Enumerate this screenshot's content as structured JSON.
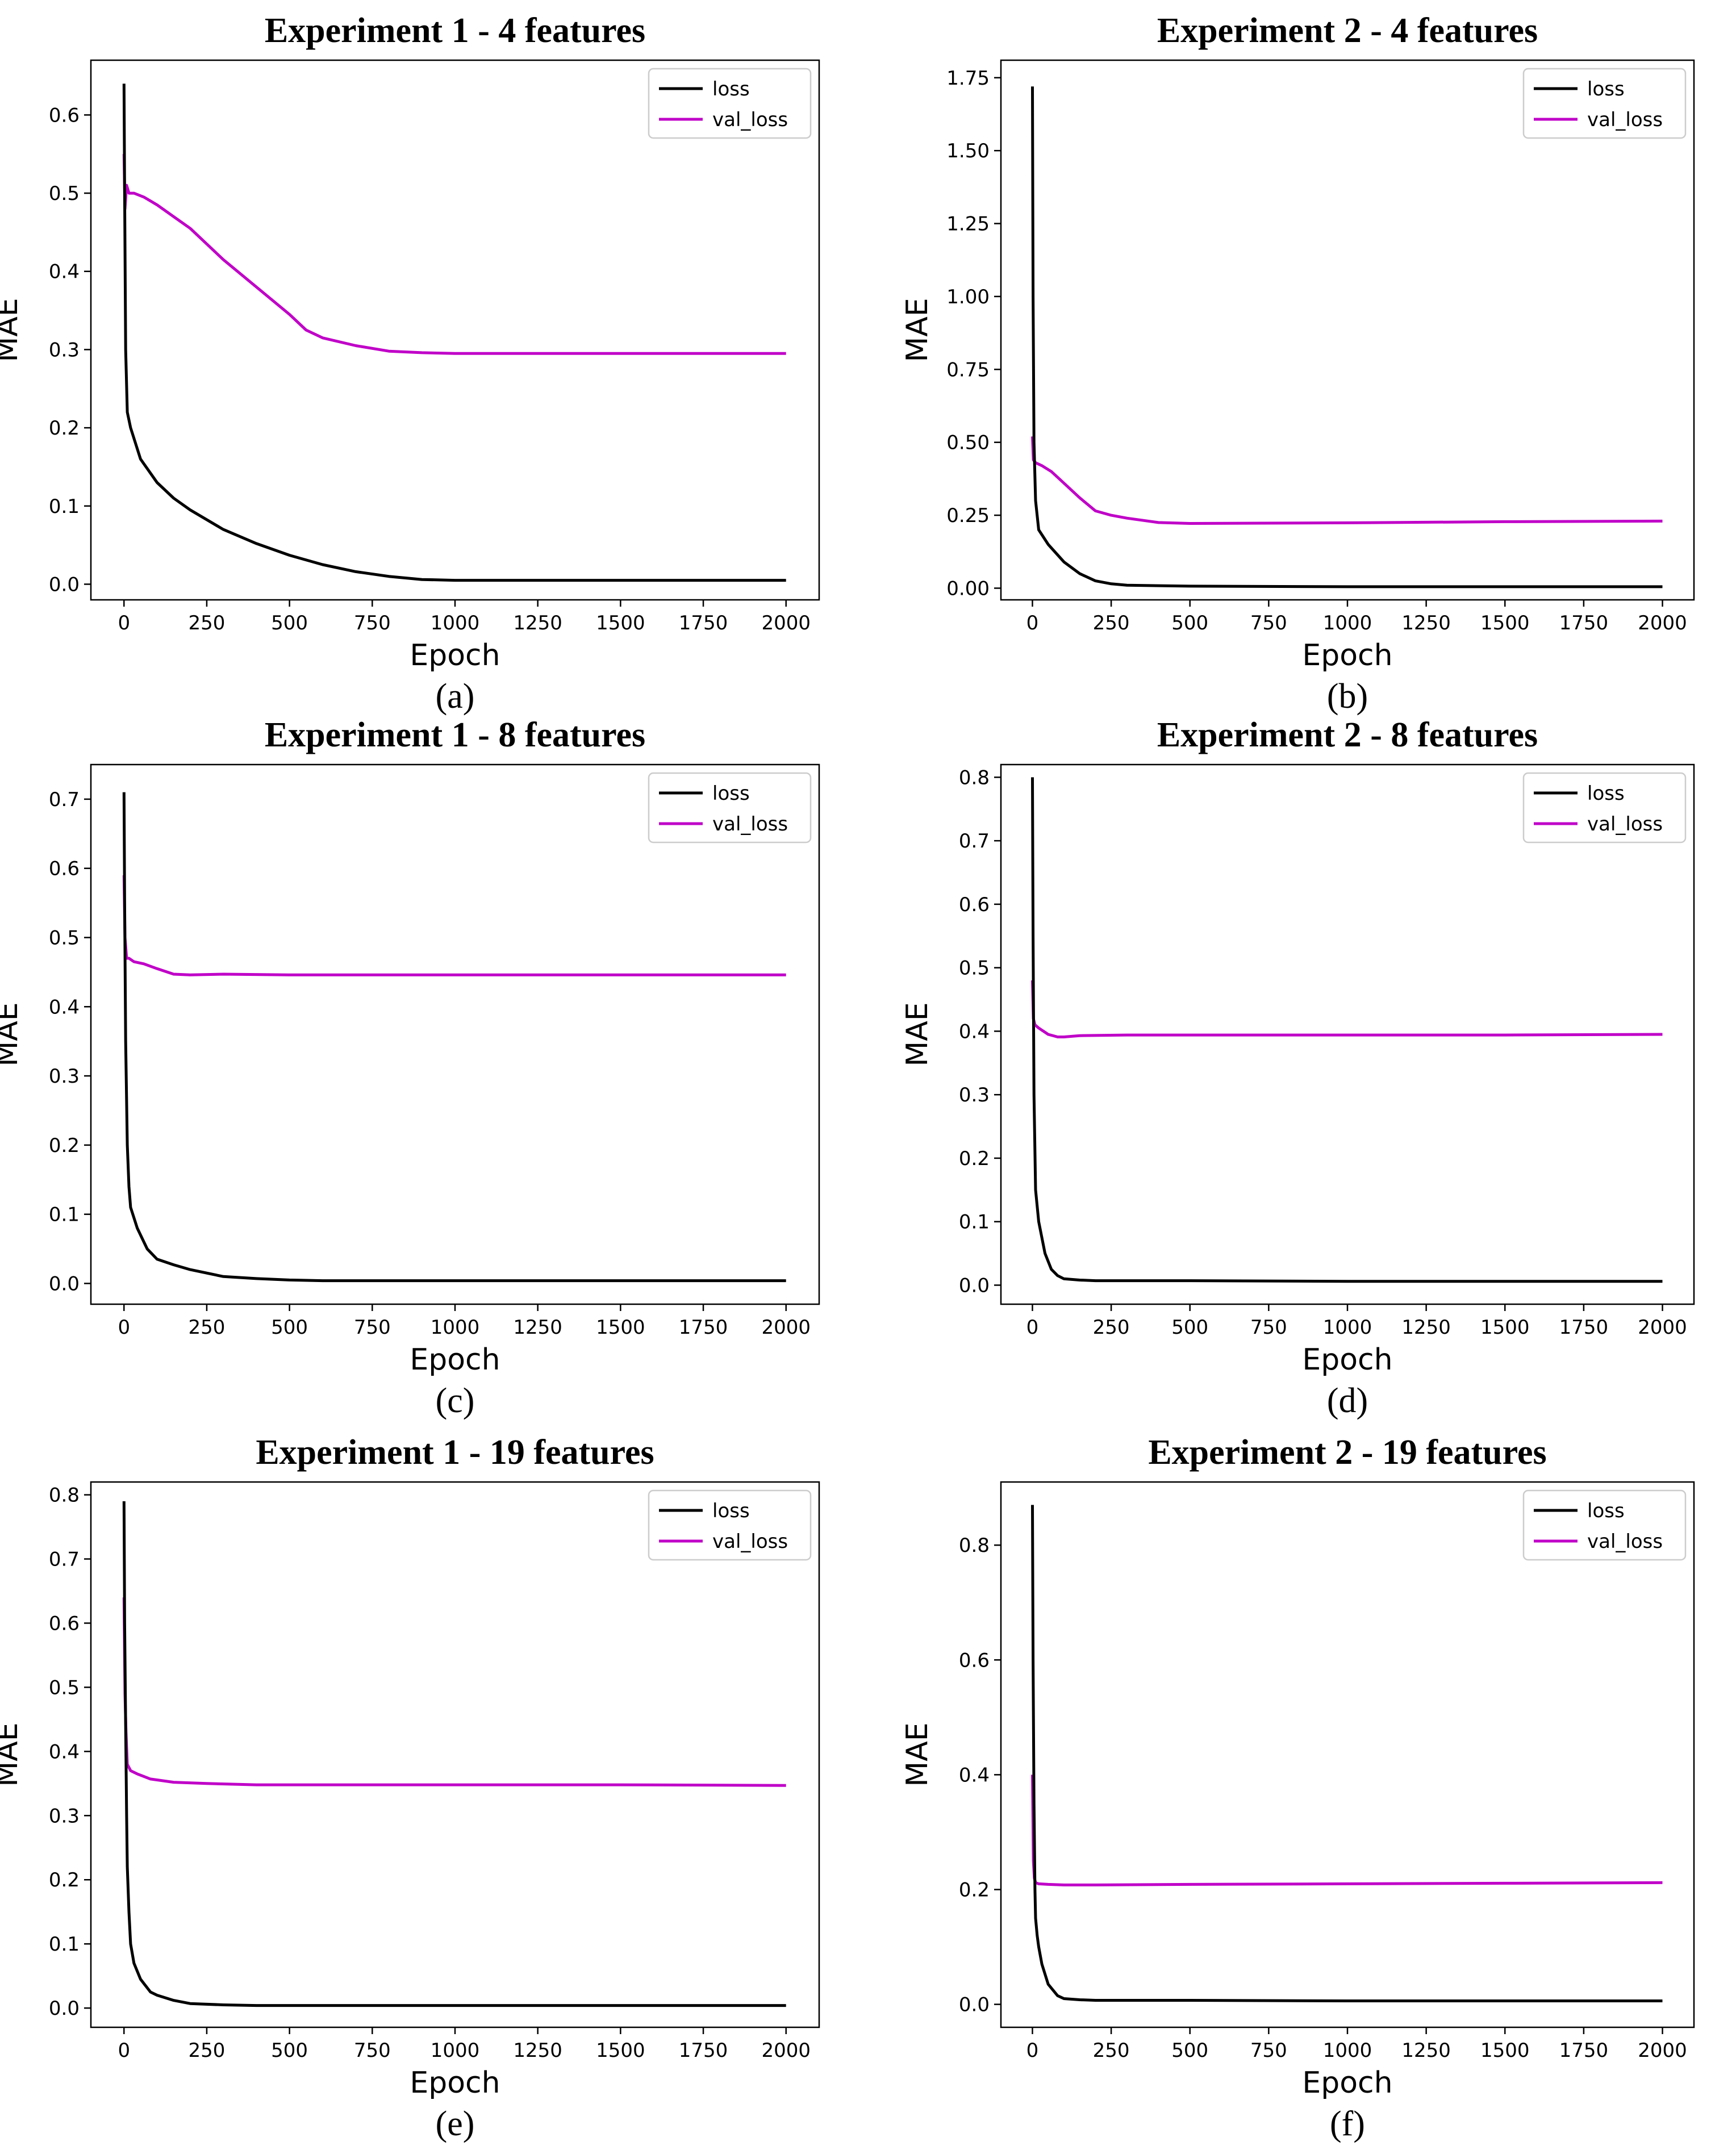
{
  "colors": {
    "loss": "#000000",
    "val_loss": "#c000c8",
    "axes": "#000000",
    "legend_border": "#cccccc"
  },
  "chart_data": [
    {
      "type": "line",
      "title": "Experiment 1 - 4 features",
      "caption": "(a)",
      "xlabel": "Epoch",
      "ylabel": "MAE",
      "xlim": [
        -100,
        2100
      ],
      "ylim": [
        -0.02,
        0.67
      ],
      "xticks": [
        0,
        250,
        500,
        750,
        1000,
        1250,
        1500,
        1750,
        2000
      ],
      "xtick_labels": [
        "0",
        "250",
        "500",
        "750",
        "1000",
        "1250",
        "1500",
        "1750",
        "2000"
      ],
      "yticks": [
        0.0,
        0.1,
        0.2,
        0.3,
        0.4,
        0.5,
        0.6
      ],
      "ytick_labels": [
        "0.0",
        "0.1",
        "0.2",
        "0.3",
        "0.4",
        "0.5",
        "0.6"
      ],
      "legend": [
        "loss",
        "val_loss"
      ],
      "legend_position": "top-right",
      "series": [
        {
          "name": "loss",
          "x": [
            0,
            2,
            5,
            10,
            20,
            50,
            100,
            150,
            200,
            300,
            400,
            500,
            600,
            700,
            800,
            900,
            1000,
            1500,
            2000
          ],
          "y": [
            0.64,
            0.5,
            0.3,
            0.22,
            0.2,
            0.16,
            0.13,
            0.11,
            0.095,
            0.07,
            0.052,
            0.037,
            0.025,
            0.016,
            0.01,
            0.006,
            0.005,
            0.005,
            0.005
          ]
        },
        {
          "name": "val_loss",
          "x": [
            0,
            3,
            8,
            15,
            30,
            60,
            100,
            150,
            200,
            250,
            300,
            400,
            500,
            550,
            600,
            700,
            800,
            900,
            1000,
            1500,
            2000
          ],
          "y": [
            0.55,
            0.48,
            0.51,
            0.5,
            0.5,
            0.495,
            0.485,
            0.47,
            0.455,
            0.435,
            0.415,
            0.38,
            0.345,
            0.325,
            0.315,
            0.305,
            0.298,
            0.296,
            0.295,
            0.295,
            0.295
          ]
        }
      ]
    },
    {
      "type": "line",
      "title": "Experiment 2 - 4 features",
      "caption": "(b)",
      "xlabel": "Epoch",
      "ylabel": "MAE",
      "xlim": [
        -100,
        2100
      ],
      "ylim": [
        -0.04,
        1.81
      ],
      "xticks": [
        0,
        250,
        500,
        750,
        1000,
        1250,
        1500,
        1750,
        2000
      ],
      "xtick_labels": [
        "0",
        "250",
        "500",
        "750",
        "1000",
        "1250",
        "1500",
        "1750",
        "2000"
      ],
      "yticks": [
        0.0,
        0.25,
        0.5,
        0.75,
        1.0,
        1.25,
        1.5,
        1.75
      ],
      "ytick_labels": [
        "0.00",
        "0.25",
        "0.50",
        "0.75",
        "1.00",
        "1.25",
        "1.50",
        "1.75"
      ],
      "legend": [
        "loss",
        "val_loss"
      ],
      "legend_position": "top-right",
      "series": [
        {
          "name": "loss",
          "x": [
            0,
            2,
            5,
            10,
            20,
            50,
            100,
            150,
            200,
            250,
            300,
            500,
            1000,
            1500,
            2000
          ],
          "y": [
            1.72,
            1.0,
            0.5,
            0.3,
            0.2,
            0.15,
            0.09,
            0.05,
            0.025,
            0.015,
            0.01,
            0.007,
            0.005,
            0.005,
            0.005
          ]
        },
        {
          "name": "val_loss",
          "x": [
            0,
            3,
            10,
            30,
            60,
            100,
            150,
            200,
            250,
            300,
            400,
            500,
            1000,
            1500,
            2000
          ],
          "y": [
            0.52,
            0.44,
            0.43,
            0.42,
            0.4,
            0.36,
            0.31,
            0.265,
            0.25,
            0.24,
            0.225,
            0.222,
            0.224,
            0.228,
            0.23
          ]
        }
      ]
    },
    {
      "type": "line",
      "title": "Experiment 1 - 8 features",
      "caption": "(c)",
      "xlabel": "Epoch",
      "ylabel": "MAE",
      "xlim": [
        -100,
        2100
      ],
      "ylim": [
        -0.03,
        0.75
      ],
      "xticks": [
        0,
        250,
        500,
        750,
        1000,
        1250,
        1500,
        1750,
        2000
      ],
      "xtick_labels": [
        "0",
        "250",
        "500",
        "750",
        "1000",
        "1250",
        "1500",
        "1750",
        "2000"
      ],
      "yticks": [
        0.0,
        0.1,
        0.2,
        0.3,
        0.4,
        0.5,
        0.6,
        0.7
      ],
      "ytick_labels": [
        "0.0",
        "0.1",
        "0.2",
        "0.3",
        "0.4",
        "0.5",
        "0.6",
        "0.7"
      ],
      "legend": [
        "loss",
        "val_loss"
      ],
      "legend_position": "top-right",
      "series": [
        {
          "name": "loss",
          "x": [
            0,
            2,
            5,
            10,
            15,
            20,
            40,
            70,
            100,
            150,
            200,
            300,
            400,
            500,
            600,
            1000,
            1500,
            2000
          ],
          "y": [
            0.71,
            0.55,
            0.35,
            0.2,
            0.14,
            0.11,
            0.08,
            0.05,
            0.035,
            0.027,
            0.02,
            0.01,
            0.007,
            0.005,
            0.004,
            0.004,
            0.004,
            0.004
          ]
        },
        {
          "name": "val_loss",
          "x": [
            0,
            3,
            8,
            15,
            30,
            60,
            100,
            150,
            200,
            300,
            500,
            1000,
            1500,
            2000
          ],
          "y": [
            0.59,
            0.5,
            0.47,
            0.47,
            0.465,
            0.462,
            0.455,
            0.447,
            0.446,
            0.447,
            0.446,
            0.446,
            0.446,
            0.446
          ]
        }
      ]
    },
    {
      "type": "line",
      "title": "Experiment 2 - 8 features",
      "caption": "(d)",
      "xlabel": "Epoch",
      "ylabel": "MAE",
      "xlim": [
        -100,
        2100
      ],
      "ylim": [
        -0.03,
        0.82
      ],
      "xticks": [
        0,
        250,
        500,
        750,
        1000,
        1250,
        1500,
        1750,
        2000
      ],
      "xtick_labels": [
        "0",
        "250",
        "500",
        "750",
        "1000",
        "1250",
        "1500",
        "1750",
        "2000"
      ],
      "yticks": [
        0.0,
        0.1,
        0.2,
        0.3,
        0.4,
        0.5,
        0.6,
        0.7,
        0.8
      ],
      "ytick_labels": [
        "0.0",
        "0.1",
        "0.2",
        "0.3",
        "0.4",
        "0.5",
        "0.6",
        "0.7",
        "0.8"
      ],
      "legend": [
        "loss",
        "val_loss"
      ],
      "legend_position": "top-right",
      "series": [
        {
          "name": "loss",
          "x": [
            0,
            2,
            5,
            10,
            20,
            40,
            60,
            80,
            100,
            150,
            200,
            500,
            1000,
            1500,
            2000
          ],
          "y": [
            0.8,
            0.55,
            0.3,
            0.15,
            0.1,
            0.05,
            0.025,
            0.015,
            0.01,
            0.008,
            0.007,
            0.007,
            0.006,
            0.006,
            0.006
          ]
        },
        {
          "name": "val_loss",
          "x": [
            0,
            3,
            8,
            20,
            50,
            80,
            100,
            150,
            300,
            500,
            1000,
            1500,
            2000
          ],
          "y": [
            0.48,
            0.42,
            0.41,
            0.405,
            0.395,
            0.391,
            0.391,
            0.393,
            0.394,
            0.394,
            0.394,
            0.394,
            0.395
          ]
        }
      ]
    },
    {
      "type": "line",
      "title": "Experiment 1 - 19 features",
      "caption": "(e)",
      "xlabel": "Epoch",
      "ylabel": "MAE",
      "xlim": [
        -100,
        2100
      ],
      "ylim": [
        -0.03,
        0.82
      ],
      "xticks": [
        0,
        250,
        500,
        750,
        1000,
        1250,
        1500,
        1750,
        2000
      ],
      "xtick_labels": [
        "0",
        "250",
        "500",
        "750",
        "1000",
        "1250",
        "1500",
        "1750",
        "2000"
      ],
      "yticks": [
        0.0,
        0.1,
        0.2,
        0.3,
        0.4,
        0.5,
        0.6,
        0.7,
        0.8
      ],
      "ytick_labels": [
        "0.0",
        "0.1",
        "0.2",
        "0.3",
        "0.4",
        "0.5",
        "0.6",
        "0.7",
        "0.8"
      ],
      "legend": [
        "loss",
        "val_loss"
      ],
      "legend_position": "top-right",
      "series": [
        {
          "name": "loss",
          "x": [
            0,
            2,
            5,
            8,
            10,
            15,
            20,
            30,
            50,
            80,
            100,
            150,
            200,
            300,
            400,
            500,
            1000,
            1500,
            2000
          ],
          "y": [
            0.79,
            0.6,
            0.44,
            0.3,
            0.22,
            0.15,
            0.1,
            0.07,
            0.045,
            0.025,
            0.02,
            0.012,
            0.007,
            0.005,
            0.004,
            0.004,
            0.004,
            0.004,
            0.004
          ]
        },
        {
          "name": "val_loss",
          "x": [
            0,
            3,
            6,
            10,
            20,
            40,
            80,
            150,
            250,
            400,
            1000,
            1500,
            2000
          ],
          "y": [
            0.64,
            0.49,
            0.43,
            0.38,
            0.37,
            0.365,
            0.357,
            0.352,
            0.35,
            0.348,
            0.348,
            0.348,
            0.347
          ]
        }
      ]
    },
    {
      "type": "line",
      "title": "Experiment 2 - 19 features",
      "caption": "(f)",
      "xlabel": "Epoch",
      "ylabel": "MAE",
      "xlim": [
        -100,
        2100
      ],
      "ylim": [
        -0.04,
        0.91
      ],
      "xticks": [
        0,
        250,
        500,
        750,
        1000,
        1250,
        1500,
        1750,
        2000
      ],
      "xtick_labels": [
        "0",
        "250",
        "500",
        "750",
        "1000",
        "1250",
        "1500",
        "1750",
        "2000"
      ],
      "yticks": [
        0.0,
        0.2,
        0.4,
        0.6,
        0.8
      ],
      "ytick_labels": [
        "0.0",
        "0.2",
        "0.4",
        "0.6",
        "0.8"
      ],
      "legend": [
        "loss",
        "val_loss"
      ],
      "legend_position": "top-right",
      "series": [
        {
          "name": "loss",
          "x": [
            0,
            2,
            5,
            8,
            10,
            15,
            20,
            30,
            50,
            80,
            100,
            150,
            200,
            500,
            1000,
            1500,
            2000
          ],
          "y": [
            0.87,
            0.6,
            0.35,
            0.2,
            0.15,
            0.12,
            0.1,
            0.07,
            0.035,
            0.015,
            0.01,
            0.008,
            0.007,
            0.007,
            0.006,
            0.006,
            0.006
          ]
        },
        {
          "name": "val_loss",
          "x": [
            0,
            3,
            6,
            10,
            20,
            50,
            100,
            200,
            500,
            1000,
            1500,
            2000
          ],
          "y": [
            0.4,
            0.25,
            0.22,
            0.212,
            0.21,
            0.209,
            0.208,
            0.208,
            0.209,
            0.21,
            0.211,
            0.212
          ]
        }
      ]
    }
  ]
}
